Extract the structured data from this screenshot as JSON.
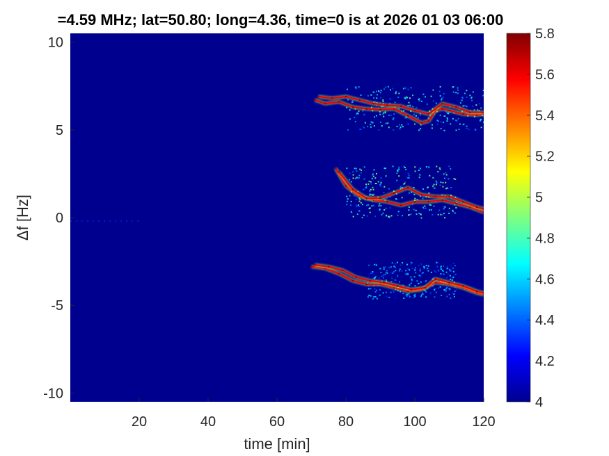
{
  "chart_data": {
    "type": "heatmap",
    "title": "=4.59 MHz;  lat=50.80; long=4.36, time=0 is at 2026 01 03 06:00",
    "xlabel": "time [min]",
    "ylabel": "Δf [Hz]",
    "xlim": [
      0,
      120
    ],
    "ylim": [
      -10.5,
      10.5
    ],
    "x_ticks": [
      20,
      40,
      60,
      80,
      100,
      120
    ],
    "x_tick_labels": [
      "20",
      "40",
      "60",
      "80",
      "100",
      "120"
    ],
    "y_ticks": [
      10,
      5,
      0,
      -5,
      -10
    ],
    "y_tick_labels": [
      "10",
      "5",
      "0",
      "-5",
      "-10"
    ],
    "colorbar": {
      "limits": [
        4,
        5.8
      ],
      "ticks": [
        5.8,
        5.6,
        5.4,
        5.2,
        5,
        4.8,
        4.6,
        4.4,
        4.2,
        4
      ],
      "tick_labels": [
        "5.8",
        "5.6",
        "5.4",
        "5.2",
        "5",
        "4.8",
        "4.6",
        "4.4",
        "4.2",
        "4"
      ],
      "colormap": "jet"
    },
    "background_value": 4.0,
    "series": [
      {
        "x": [
          71,
          74,
          78,
          82,
          86,
          90,
          94,
          98,
          102,
          104,
          106,
          108,
          110,
          114,
          118,
          120
        ],
        "y": [
          6.7,
          6.5,
          6.6,
          6.3,
          6.2,
          6.15,
          6.2,
          5.8,
          5.4,
          5.5,
          6.1,
          6.2,
          6.1,
          5.9,
          5.85,
          5.9
        ]
      },
      {
        "x": [
          72,
          76,
          80,
          84,
          88,
          92,
          96,
          100,
          104,
          108,
          112,
          116,
          120
        ],
        "y": [
          6.9,
          6.8,
          6.9,
          6.7,
          6.5,
          6.4,
          6.35,
          6.1,
          5.9,
          6.5,
          6.3,
          6.0,
          6.0
        ]
      },
      {
        "x": [
          77,
          80,
          84,
          88,
          92,
          96,
          100,
          104,
          108,
          112,
          116,
          120
        ],
        "y": [
          2.8,
          1.8,
          1.2,
          1.0,
          0.9,
          0.7,
          0.9,
          0.9,
          1.0,
          0.8,
          0.6,
          0.3
        ]
      },
      {
        "x": [
          78,
          82,
          86,
          90,
          94,
          98,
          102,
          106,
          110,
          114,
          118,
          120
        ],
        "y": [
          2.6,
          1.6,
          1.1,
          1.1,
          1.4,
          1.7,
          1.3,
          1.2,
          1.2,
          0.9,
          0.6,
          0.5
        ]
      },
      {
        "x": [
          70,
          74,
          78,
          82,
          86,
          90,
          94,
          98,
          102,
          106,
          110,
          114,
          118,
          120
        ],
        "y": [
          -2.8,
          -2.9,
          -3.2,
          -3.6,
          -3.8,
          -3.8,
          -4.0,
          -4.2,
          -4.1,
          -3.7,
          -3.8,
          -4.0,
          -4.3,
          -4.4
        ]
      },
      {
        "x": [
          71,
          75,
          79,
          83,
          87,
          91,
          95,
          99,
          103,
          106,
          110,
          114,
          118,
          120
        ],
        "y": [
          -2.7,
          -2.8,
          -3.0,
          -3.4,
          -3.6,
          -3.7,
          -3.9,
          -4.1,
          -4.0,
          -3.5,
          -3.7,
          -3.9,
          -4.2,
          -4.3
        ]
      }
    ],
    "diffuse_regions": [
      {
        "x": [
          80,
          120
        ],
        "y": [
          5.0,
          7.5
        ],
        "peak": 4.9
      },
      {
        "x": [
          80,
          112
        ],
        "y": [
          0.0,
          3.0
        ],
        "peak": 5.0
      },
      {
        "x": [
          86,
          112
        ],
        "y": [
          -4.6,
          -2.5
        ],
        "peak": 4.7
      }
    ]
  }
}
